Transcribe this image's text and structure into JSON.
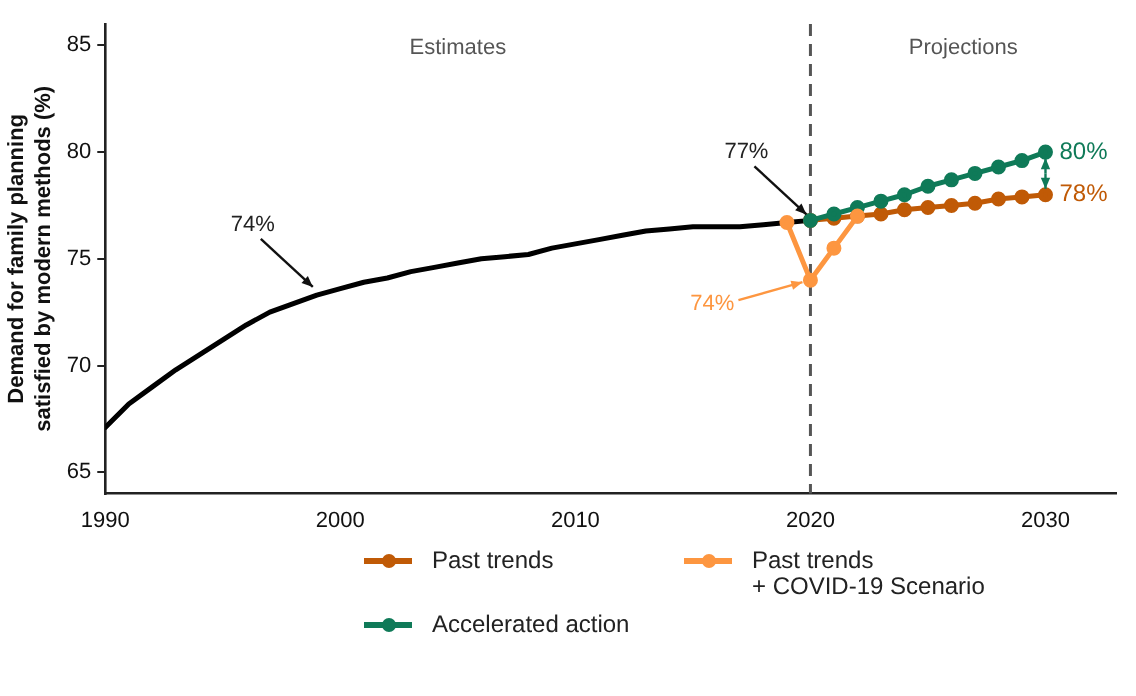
{
  "chart_data": {
    "type": "line",
    "ylabel": "Demand for family planning\nsatisfied by modern methods (%)",
    "xlim": [
      1990,
      2033
    ],
    "xticks": [
      1990,
      2000,
      2010,
      2020,
      2030
    ],
    "ylim": [
      64,
      86
    ],
    "yticks": [
      65,
      70,
      75,
      80,
      85
    ],
    "grid": false,
    "legend": "bottom",
    "line_style": "solid",
    "series": [
      {
        "color": "#000000",
        "marker": "none",
        "x": [
          1990,
          1991,
          1992,
          1993,
          1994,
          1995,
          1996,
          1997,
          1998,
          1999,
          2000,
          2001,
          2002,
          2003,
          2004,
          2005,
          2006,
          2007,
          2008,
          2009,
          2010,
          2011,
          2012,
          2013,
          2014,
          2015,
          2016,
          2017,
          2018,
          2019,
          2020
        ],
        "values": [
          67.1,
          68.2,
          69.0,
          69.8,
          70.5,
          71.2,
          71.9,
          72.5,
          72.9,
          73.3,
          73.6,
          73.9,
          74.1,
          74.4,
          74.6,
          74.8,
          75.0,
          75.1,
          75.2,
          75.5,
          75.7,
          75.9,
          76.1,
          76.3,
          76.4,
          76.5,
          76.5,
          76.5,
          76.6,
          76.7,
          76.8
        ]
      },
      {
        "name": "Past trends",
        "color": "#c05a06",
        "marker": "circle",
        "x": [
          2020,
          2021,
          2022,
          2023,
          2024,
          2025,
          2026,
          2027,
          2028,
          2029,
          2030
        ],
        "values": [
          76.8,
          76.9,
          77.0,
          77.1,
          77.3,
          77.4,
          77.5,
          77.6,
          77.8,
          77.9,
          78.0
        ],
        "value_labels": [
          null,
          null,
          null,
          null,
          null,
          null,
          null,
          null,
          null,
          null,
          "78%"
        ]
      },
      {
        "name": "Accelerated action",
        "color": "#0f7a58",
        "marker": "circle",
        "x": [
          2020,
          2021,
          2022,
          2023,
          2024,
          2025,
          2026,
          2027,
          2028,
          2029,
          2030
        ],
        "values": [
          76.8,
          77.1,
          77.4,
          77.7,
          78.0,
          78.4,
          78.7,
          79.0,
          79.3,
          79.6,
          80.0
        ],
        "value_labels": [
          null,
          null,
          null,
          null,
          null,
          null,
          null,
          null,
          null,
          null,
          "80%"
        ]
      },
      {
        "name": "Past trends\n+ COVID-19 Scenario",
        "color": "#fd9640",
        "marker": "circle",
        "x": [
          2019,
          2020,
          2021,
          2022
        ],
        "values": [
          76.7,
          74.0,
          75.5,
          77.0
        ],
        "value_labels": [
          null,
          "74%",
          null,
          null
        ]
      }
    ],
    "ref_lines": [
      {
        "axis": "x",
        "value": 2020,
        "color": "#555555",
        "line_style": "dashed"
      }
    ],
    "annotations": [
      "Estimates",
      "Projections",
      {
        "text": "74%",
        "x": 1999,
        "y": 73.4
      },
      {
        "text": "77%",
        "x": 2020,
        "y": 76.8
      }
    ]
  }
}
